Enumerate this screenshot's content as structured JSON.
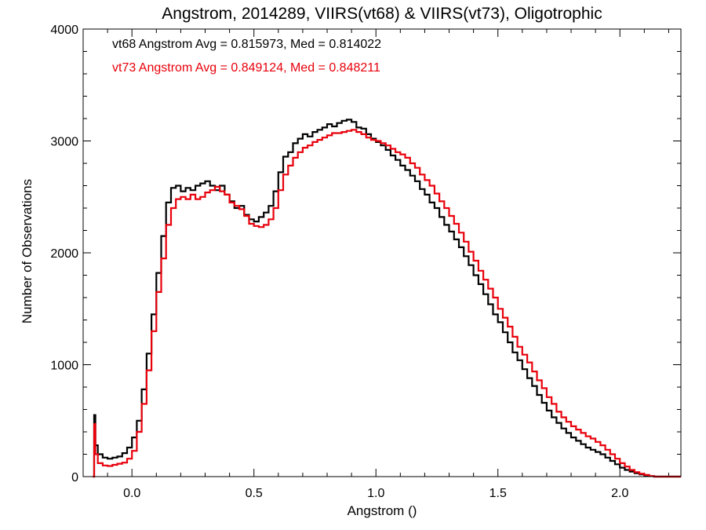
{
  "chart_data": {
    "type": "line",
    "title": "Angstrom, 2014289, VIIRS(vt68) & VIIRS(vt73), Oligotrophic",
    "xlabel": "Angstrom ()",
    "ylabel": "Number of Observations",
    "xlim": [
      -0.2,
      2.25
    ],
    "ylim": [
      0,
      4000
    ],
    "xticks": [
      "0.0",
      "0.5",
      "1.0",
      "1.5",
      "2.0"
    ],
    "yticks": [
      "0",
      "1000",
      "2000",
      "3000",
      "4000"
    ],
    "annotations": [
      {
        "text": "vt68 Angstrom Avg = 0.815973, Med = 0.814022",
        "color": "#000000"
      },
      {
        "text": "vt73 Angstrom Avg = 0.849124, Med = 0.848211",
        "color": "#e8000b"
      }
    ],
    "grid": false,
    "series": [
      {
        "color": "#000000",
        "points": [
          [
            -0.16,
            0
          ],
          [
            -0.155,
            550
          ],
          [
            -0.15,
            280
          ],
          [
            -0.14,
            200
          ],
          [
            -0.12,
            170
          ],
          [
            -0.1,
            160
          ],
          [
            -0.08,
            170
          ],
          [
            -0.06,
            180
          ],
          [
            -0.04,
            210
          ],
          [
            -0.02,
            260
          ],
          [
            0.0,
            350
          ],
          [
            0.02,
            500
          ],
          [
            0.04,
            780
          ],
          [
            0.06,
            1100
          ],
          [
            0.08,
            1450
          ],
          [
            0.1,
            1820
          ],
          [
            0.12,
            2150
          ],
          [
            0.14,
            2450
          ],
          [
            0.16,
            2580
          ],
          [
            0.18,
            2600
          ],
          [
            0.2,
            2550
          ],
          [
            0.22,
            2580
          ],
          [
            0.24,
            2560
          ],
          [
            0.26,
            2600
          ],
          [
            0.28,
            2620
          ],
          [
            0.3,
            2640
          ],
          [
            0.32,
            2600
          ],
          [
            0.34,
            2560
          ],
          [
            0.36,
            2600
          ],
          [
            0.38,
            2520
          ],
          [
            0.4,
            2460
          ],
          [
            0.42,
            2400
          ],
          [
            0.44,
            2420
          ],
          [
            0.46,
            2340
          ],
          [
            0.48,
            2300
          ],
          [
            0.5,
            2280
          ],
          [
            0.52,
            2320
          ],
          [
            0.54,
            2360
          ],
          [
            0.56,
            2420
          ],
          [
            0.58,
            2550
          ],
          [
            0.6,
            2720
          ],
          [
            0.62,
            2860
          ],
          [
            0.64,
            2900
          ],
          [
            0.66,
            2980
          ],
          [
            0.68,
            3020
          ],
          [
            0.7,
            3060
          ],
          [
            0.72,
            3040
          ],
          [
            0.74,
            3080
          ],
          [
            0.76,
            3100
          ],
          [
            0.78,
            3120
          ],
          [
            0.8,
            3150
          ],
          [
            0.82,
            3130
          ],
          [
            0.84,
            3160
          ],
          [
            0.86,
            3180
          ],
          [
            0.88,
            3190
          ],
          [
            0.9,
            3170
          ],
          [
            0.92,
            3120
          ],
          [
            0.94,
            3110
          ],
          [
            0.96,
            3060
          ],
          [
            0.98,
            3020
          ],
          [
            1.0,
            2990
          ],
          [
            1.02,
            2960
          ],
          [
            1.04,
            2920
          ],
          [
            1.06,
            2870
          ],
          [
            1.08,
            2830
          ],
          [
            1.1,
            2780
          ],
          [
            1.12,
            2740
          ],
          [
            1.14,
            2690
          ],
          [
            1.16,
            2640
          ],
          [
            1.18,
            2570
          ],
          [
            1.2,
            2520
          ],
          [
            1.22,
            2450
          ],
          [
            1.24,
            2400
          ],
          [
            1.26,
            2320
          ],
          [
            1.28,
            2250
          ],
          [
            1.3,
            2190
          ],
          [
            1.32,
            2120
          ],
          [
            1.34,
            2050
          ],
          [
            1.36,
            1970
          ],
          [
            1.38,
            1890
          ],
          [
            1.4,
            1800
          ],
          [
            1.42,
            1720
          ],
          [
            1.44,
            1630
          ],
          [
            1.46,
            1540
          ],
          [
            1.48,
            1450
          ],
          [
            1.5,
            1380
          ],
          [
            1.52,
            1290
          ],
          [
            1.54,
            1200
          ],
          [
            1.56,
            1110
          ],
          [
            1.58,
            1040
          ],
          [
            1.6,
            960
          ],
          [
            1.62,
            880
          ],
          [
            1.64,
            810
          ],
          [
            1.66,
            730
          ],
          [
            1.68,
            660
          ],
          [
            1.7,
            590
          ],
          [
            1.72,
            530
          ],
          [
            1.74,
            480
          ],
          [
            1.76,
            430
          ],
          [
            1.78,
            390
          ],
          [
            1.8,
            350
          ],
          [
            1.82,
            320
          ],
          [
            1.84,
            290
          ],
          [
            1.86,
            260
          ],
          [
            1.88,
            240
          ],
          [
            1.9,
            220
          ],
          [
            1.92,
            200
          ],
          [
            1.94,
            170
          ],
          [
            1.96,
            140
          ],
          [
            1.98,
            110
          ],
          [
            2.0,
            80
          ],
          [
            2.02,
            60
          ],
          [
            2.04,
            45
          ],
          [
            2.06,
            30
          ],
          [
            2.08,
            20
          ],
          [
            2.1,
            10
          ],
          [
            2.12,
            5
          ],
          [
            2.14,
            0
          ]
        ]
      },
      {
        "color": "#e8000b",
        "points": [
          [
            -0.16,
            0
          ],
          [
            -0.155,
            470
          ],
          [
            -0.15,
            200
          ],
          [
            -0.14,
            120
          ],
          [
            -0.12,
            100
          ],
          [
            -0.1,
            95
          ],
          [
            -0.08,
            105
          ],
          [
            -0.06,
            115
          ],
          [
            -0.04,
            125
          ],
          [
            -0.02,
            160
          ],
          [
            0.0,
            230
          ],
          [
            0.02,
            400
          ],
          [
            0.04,
            650
          ],
          [
            0.06,
            950
          ],
          [
            0.08,
            1300
          ],
          [
            0.1,
            1650
          ],
          [
            0.12,
            1950
          ],
          [
            0.14,
            2250
          ],
          [
            0.16,
            2400
          ],
          [
            0.18,
            2480
          ],
          [
            0.2,
            2500
          ],
          [
            0.22,
            2480
          ],
          [
            0.24,
            2520
          ],
          [
            0.26,
            2480
          ],
          [
            0.28,
            2500
          ],
          [
            0.3,
            2540
          ],
          [
            0.32,
            2560
          ],
          [
            0.34,
            2590
          ],
          [
            0.36,
            2550
          ],
          [
            0.38,
            2520
          ],
          [
            0.4,
            2450
          ],
          [
            0.42,
            2420
          ],
          [
            0.44,
            2390
          ],
          [
            0.46,
            2330
          ],
          [
            0.48,
            2260
          ],
          [
            0.5,
            2240
          ],
          [
            0.52,
            2230
          ],
          [
            0.54,
            2250
          ],
          [
            0.56,
            2300
          ],
          [
            0.58,
            2400
          ],
          [
            0.6,
            2560
          ],
          [
            0.62,
            2700
          ],
          [
            0.64,
            2780
          ],
          [
            0.66,
            2850
          ],
          [
            0.68,
            2900
          ],
          [
            0.7,
            2940
          ],
          [
            0.72,
            2960
          ],
          [
            0.74,
            2990
          ],
          [
            0.76,
            3010
          ],
          [
            0.78,
            3030
          ],
          [
            0.8,
            3050
          ],
          [
            0.82,
            3070
          ],
          [
            0.84,
            3070
          ],
          [
            0.86,
            3080
          ],
          [
            0.88,
            3090
          ],
          [
            0.9,
            3100
          ],
          [
            0.92,
            3080
          ],
          [
            0.94,
            3060
          ],
          [
            0.96,
            3030
          ],
          [
            0.98,
            3010
          ],
          [
            1.0,
            3000
          ],
          [
            1.02,
            2980
          ],
          [
            1.04,
            2960
          ],
          [
            1.06,
            2930
          ],
          [
            1.08,
            2900
          ],
          [
            1.1,
            2880
          ],
          [
            1.12,
            2850
          ],
          [
            1.14,
            2800
          ],
          [
            1.16,
            2760
          ],
          [
            1.18,
            2700
          ],
          [
            1.2,
            2650
          ],
          [
            1.22,
            2600
          ],
          [
            1.24,
            2530
          ],
          [
            1.26,
            2460
          ],
          [
            1.28,
            2400
          ],
          [
            1.3,
            2330
          ],
          [
            1.32,
            2260
          ],
          [
            1.34,
            2180
          ],
          [
            1.36,
            2100
          ],
          [
            1.38,
            2010
          ],
          [
            1.4,
            1930
          ],
          [
            1.42,
            1840
          ],
          [
            1.44,
            1760
          ],
          [
            1.46,
            1680
          ],
          [
            1.48,
            1600
          ],
          [
            1.5,
            1500
          ],
          [
            1.52,
            1420
          ],
          [
            1.54,
            1340
          ],
          [
            1.56,
            1250
          ],
          [
            1.58,
            1160
          ],
          [
            1.6,
            1090
          ],
          [
            1.62,
            1020
          ],
          [
            1.64,
            940
          ],
          [
            1.66,
            860
          ],
          [
            1.68,
            790
          ],
          [
            1.7,
            710
          ],
          [
            1.72,
            650
          ],
          [
            1.74,
            580
          ],
          [
            1.76,
            530
          ],
          [
            1.78,
            490
          ],
          [
            1.8,
            450
          ],
          [
            1.82,
            420
          ],
          [
            1.84,
            390
          ],
          [
            1.86,
            360
          ],
          [
            1.88,
            340
          ],
          [
            1.9,
            310
          ],
          [
            1.92,
            280
          ],
          [
            1.94,
            240
          ],
          [
            1.96,
            200
          ],
          [
            1.98,
            160
          ],
          [
            2.0,
            120
          ],
          [
            2.02,
            90
          ],
          [
            2.04,
            60
          ],
          [
            2.06,
            40
          ],
          [
            2.08,
            25
          ],
          [
            2.1,
            15
          ],
          [
            2.12,
            5
          ],
          [
            2.14,
            0
          ]
        ]
      }
    ]
  }
}
